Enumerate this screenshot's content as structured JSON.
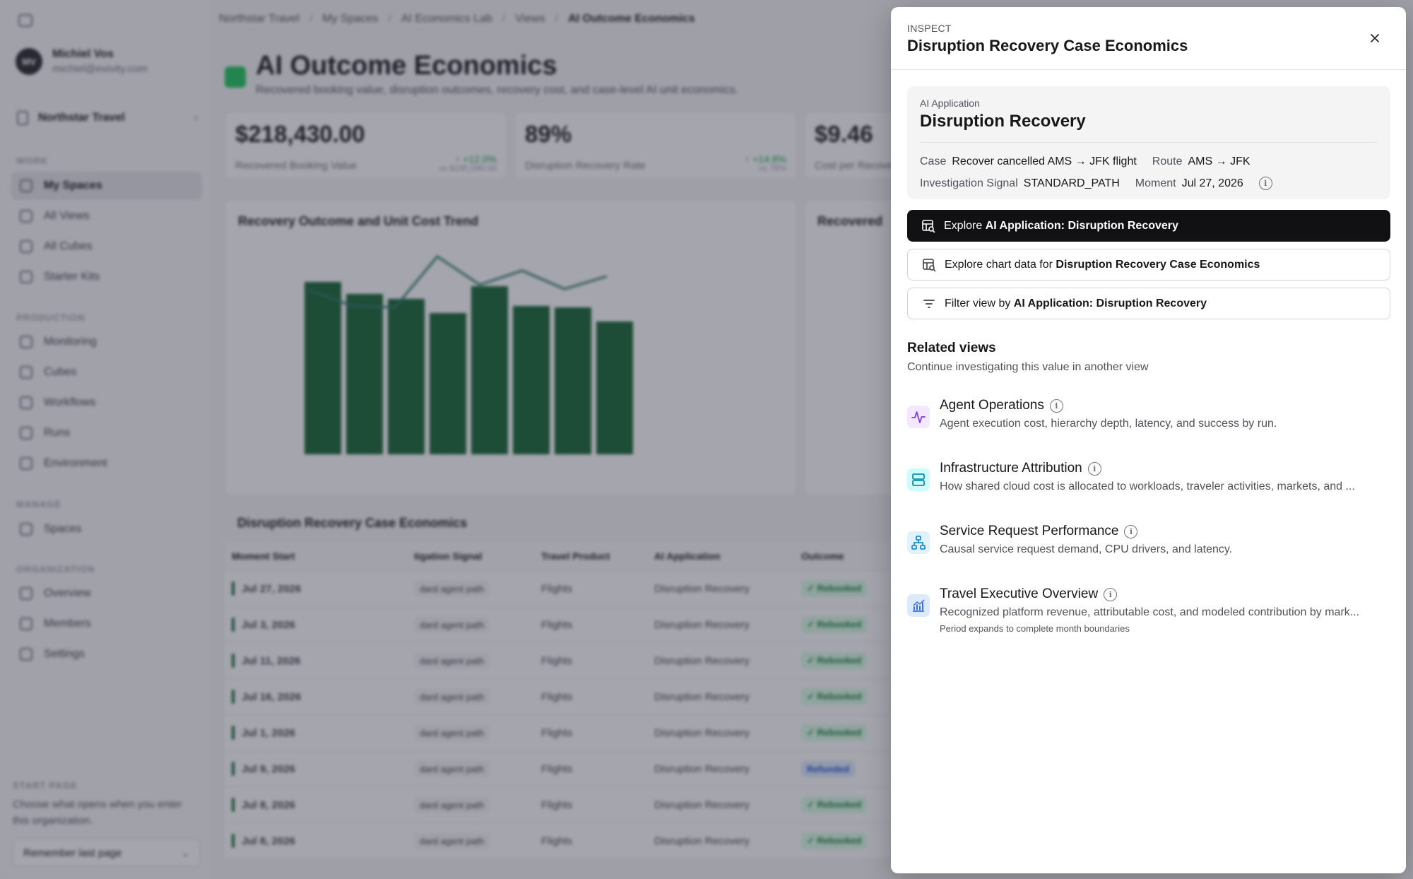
{
  "app": {
    "user": {
      "initials": "MV",
      "name": "Michiel Vos",
      "email": "michiel@exivity.com"
    },
    "org": "Northstar Travel",
    "sections": {
      "work": "WORK",
      "production": "PRODUCTION",
      "manage": "MANAGE",
      "organization": "ORGANIZATION"
    },
    "nav": {
      "my_spaces": "My Spaces",
      "all_views": "All Views",
      "all_cubes": "All Cubes",
      "starter_kits": "Starter Kits",
      "monitoring": "Monitoring",
      "cubes": "Cubes",
      "workflows": "Workflows",
      "runs": "Runs",
      "environment": "Environment",
      "spaces": "Spaces",
      "overview": "Overview",
      "members": "Members",
      "settings": "Settings"
    },
    "start_page": {
      "label": "START PAGE",
      "description": "Choose what opens when you enter this organization.",
      "value": "Remember last page"
    }
  },
  "breadcrumb": [
    "Northstar Travel",
    "My Spaces",
    "AI Economics Lab",
    "Views",
    "AI Outcome Economics"
  ],
  "page": {
    "title": "AI Outcome Economics",
    "subtitle": "Recovered booking value, disruption outcomes, recovery cost, and case-level AI unit economics."
  },
  "kpis": [
    {
      "value": "$218,430.00",
      "label": "Recovered Booking Value",
      "delta": "↑ +12.0%",
      "compare": "vs $195,090.00"
    },
    {
      "value": "89%",
      "label": "Disruption Recovery Rate",
      "delta": "↑ +14.8%",
      "compare": "vs 78%"
    },
    {
      "value": "$9.46",
      "label": "Cost per Recovered Booking"
    }
  ],
  "charts": {
    "left_title": "Recovery Outcome and Unit Cost Trend",
    "right_title": "Recovered"
  },
  "table": {
    "title": "Disruption Recovery Case Economics",
    "headers": [
      "Moment Start",
      "tigation Signal",
      "Travel Product",
      "AI Application",
      "Outcome"
    ],
    "rows": [
      {
        "date": "Jul 27, 2026",
        "signal": "dard agent path",
        "product": "Flights",
        "app": "Disruption Recovery",
        "outcome": "✓ Rebooked"
      },
      {
        "date": "Jul 3, 2026",
        "signal": "dard agent path",
        "product": "Flights",
        "app": "Disruption Recovery",
        "outcome": "✓ Rebooked"
      },
      {
        "date": "Jul 11, 2026",
        "signal": "dard agent path",
        "product": "Flights",
        "app": "Disruption Recovery",
        "outcome": "✓ Rebooked"
      },
      {
        "date": "Jul 16, 2026",
        "signal": "dard agent path",
        "product": "Flights",
        "app": "Disruption Recovery",
        "outcome": "✓ Rebooked"
      },
      {
        "date": "Jul 1, 2026",
        "signal": "dard agent path",
        "product": "Flights",
        "app": "Disruption Recovery",
        "outcome": "✓ Rebooked"
      },
      {
        "date": "Jul 9, 2026",
        "signal": "dard agent path",
        "product": "Flights",
        "app": "Disruption Recovery",
        "outcome": "Refunded"
      },
      {
        "date": "Jul 8, 2026",
        "signal": "dard agent path",
        "product": "Flights",
        "app": "Disruption Recovery",
        "outcome": "✓ Rebooked"
      },
      {
        "date": "Jul 8, 2026",
        "signal": "dard agent path",
        "product": "Flights",
        "app": "Disruption Recovery",
        "outcome": "✓ Rebooked"
      }
    ]
  },
  "drawer": {
    "eyebrow": "INSPECT",
    "title": "Disruption Recovery Case Economics",
    "app_card": {
      "eyebrow": "AI Application",
      "title": "Disruption Recovery",
      "meta": {
        "case_key": "Case",
        "case_value": "Recover cancelled AMS → JFK flight",
        "route_key": "Route",
        "route_value": "AMS → JFK",
        "signal_key": "Investigation Signal",
        "signal_value": "STANDARD_PATH",
        "moment_key": "Moment",
        "moment_value": "Jul 27, 2026"
      }
    },
    "actions": {
      "explore_prefix": "Explore ",
      "explore_bold": "AI Application: Disruption Recovery",
      "chart_prefix": "Explore chart data for ",
      "chart_bold": "Disruption Recovery Case Economics",
      "filter_prefix": "Filter view by ",
      "filter_bold": "AI Application: Disruption Recovery"
    },
    "related": {
      "title": "Related views",
      "subtitle": "Continue investigating this value in another view",
      "items": [
        {
          "name": "Agent Operations",
          "desc": "Agent execution cost, hierarchy depth, latency, and success by run.",
          "icon": "activity-icon"
        },
        {
          "name": "Infrastructure Attribution",
          "desc": "How shared cloud cost is allocated to workloads, traveler activities, markets, and ...",
          "icon": "server-icon"
        },
        {
          "name": "Service Request Performance",
          "desc": "Causal service request demand, CPU drivers, and latency.",
          "icon": "network-icon"
        },
        {
          "name": "Travel Executive Overview",
          "desc": "Recognized platform revenue, attributable cost, and modeled contribution by mark...",
          "note": "Period expands to complete month boundaries",
          "icon": "chart-icon"
        }
      ]
    }
  },
  "colors": {
    "accent_green": "#166534",
    "primary_button": "#111113",
    "activity_icon": "#7c3aed",
    "infra_icon": "#0891b2",
    "service_icon": "#0284c7",
    "exec_icon": "#2563eb"
  }
}
